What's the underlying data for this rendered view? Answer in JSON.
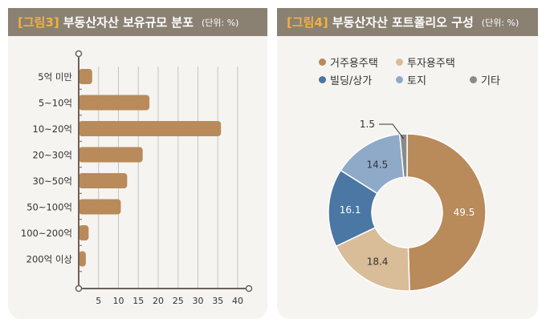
{
  "chart_data": [
    {
      "type": "bar",
      "orientation": "horizontal",
      "figure_tag": "[그림3]",
      "title": "부동산자산 보유규모 분포",
      "unit": "(단위: %)",
      "categories": [
        "5억 미만",
        "5~10억",
        "10~20억",
        "20~30억",
        "30~50억",
        "50~100억",
        "100~200억",
        "200억 이상"
      ],
      "values": [
        3.4,
        17.8,
        35.8,
        16.1,
        12.2,
        10.6,
        2.5,
        1.8
      ],
      "xticks": [
        "5",
        "10",
        "15",
        "20",
        "25",
        "30",
        "35",
        "40"
      ],
      "xlim": [
        0,
        42
      ],
      "grid": true,
      "color": "#b98a5a"
    },
    {
      "type": "pie",
      "donut": true,
      "figure_tag": "[그림4]",
      "title": "부동산자산 포트폴리오 구성",
      "unit": "(단위: %)",
      "labels": [
        "거주용주택",
        "투자용주택",
        "빌딩/상가",
        "토지",
        "기타"
      ],
      "values": [
        49.5,
        18.4,
        16.1,
        14.5,
        1.5
      ],
      "value_labels": [
        "49.5",
        "18.4",
        "16.1",
        "14.5",
        "1.5"
      ],
      "colors": [
        "#b98a5a",
        "#d9bc98",
        "#4a77a3",
        "#8faac9",
        "#8a8a8a"
      ],
      "legend": "top"
    }
  ]
}
